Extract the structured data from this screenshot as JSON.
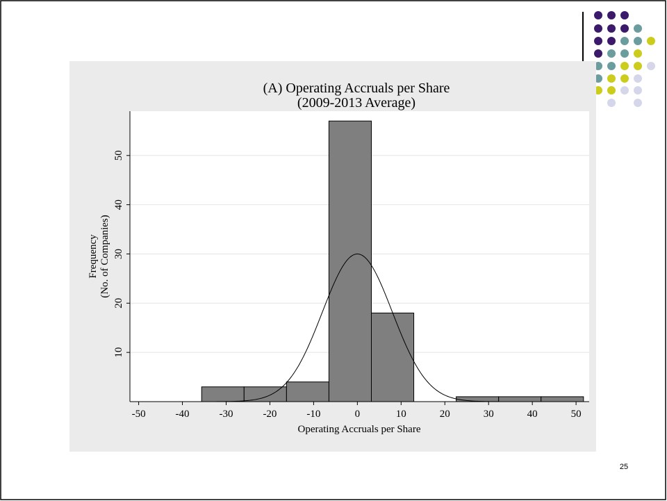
{
  "chart_data": {
    "type": "histogram",
    "title": "(A) Operating Accruals per Share",
    "subtitle": "(2009-2013 Average)",
    "xlabel": "Operating Accruals per Share",
    "ylabel": [
      "Frequency",
      "(No. of Companies)"
    ],
    "bins": [
      -35.6,
      -25.9,
      -16.2,
      -6.5,
      3.2,
      12.9,
      22.6,
      32.3,
      42.0,
      51.7
    ],
    "counts": [
      3,
      3,
      4,
      57,
      18,
      0,
      1,
      1,
      1
    ],
    "color": "#7f7f7f",
    "normal_curve": {
      "mean": 0,
      "sd": 8,
      "peak": 30
    },
    "xlim": [
      -52,
      53
    ],
    "ylim": [
      0,
      59
    ],
    "xticks": [
      -50,
      -40,
      -30,
      -20,
      -10,
      0,
      10,
      20,
      30,
      40,
      50
    ],
    "yticks": [
      10,
      20,
      30,
      40,
      50
    ],
    "grid": true
  },
  "page_number": "25"
}
